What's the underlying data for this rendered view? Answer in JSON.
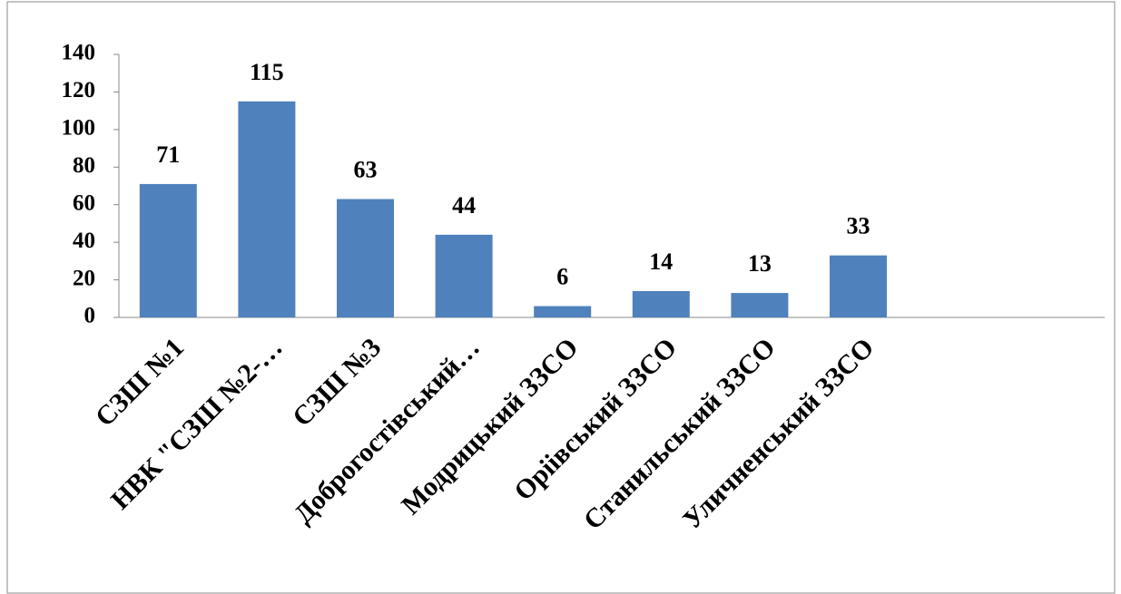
{
  "chart_data": {
    "type": "bar",
    "categories": [
      "СЗШ №1",
      "НВК \"СЗШ №2-…",
      "СЗШ №3",
      "Доброгостівський…",
      "Модрицький ЗЗСО",
      "Оріівський ЗЗСО",
      "Станильський ЗЗСО",
      "Уличненський ЗЗСО",
      null,
      null
    ],
    "values": [
      71,
      115,
      63,
      44,
      6,
      14,
      13,
      33,
      null,
      null
    ],
    "color": "#4f81bd",
    "ylim": [
      0,
      140
    ],
    "yticks": [
      0,
      20,
      40,
      60,
      80,
      100,
      120,
      140
    ],
    "grid": false
  }
}
